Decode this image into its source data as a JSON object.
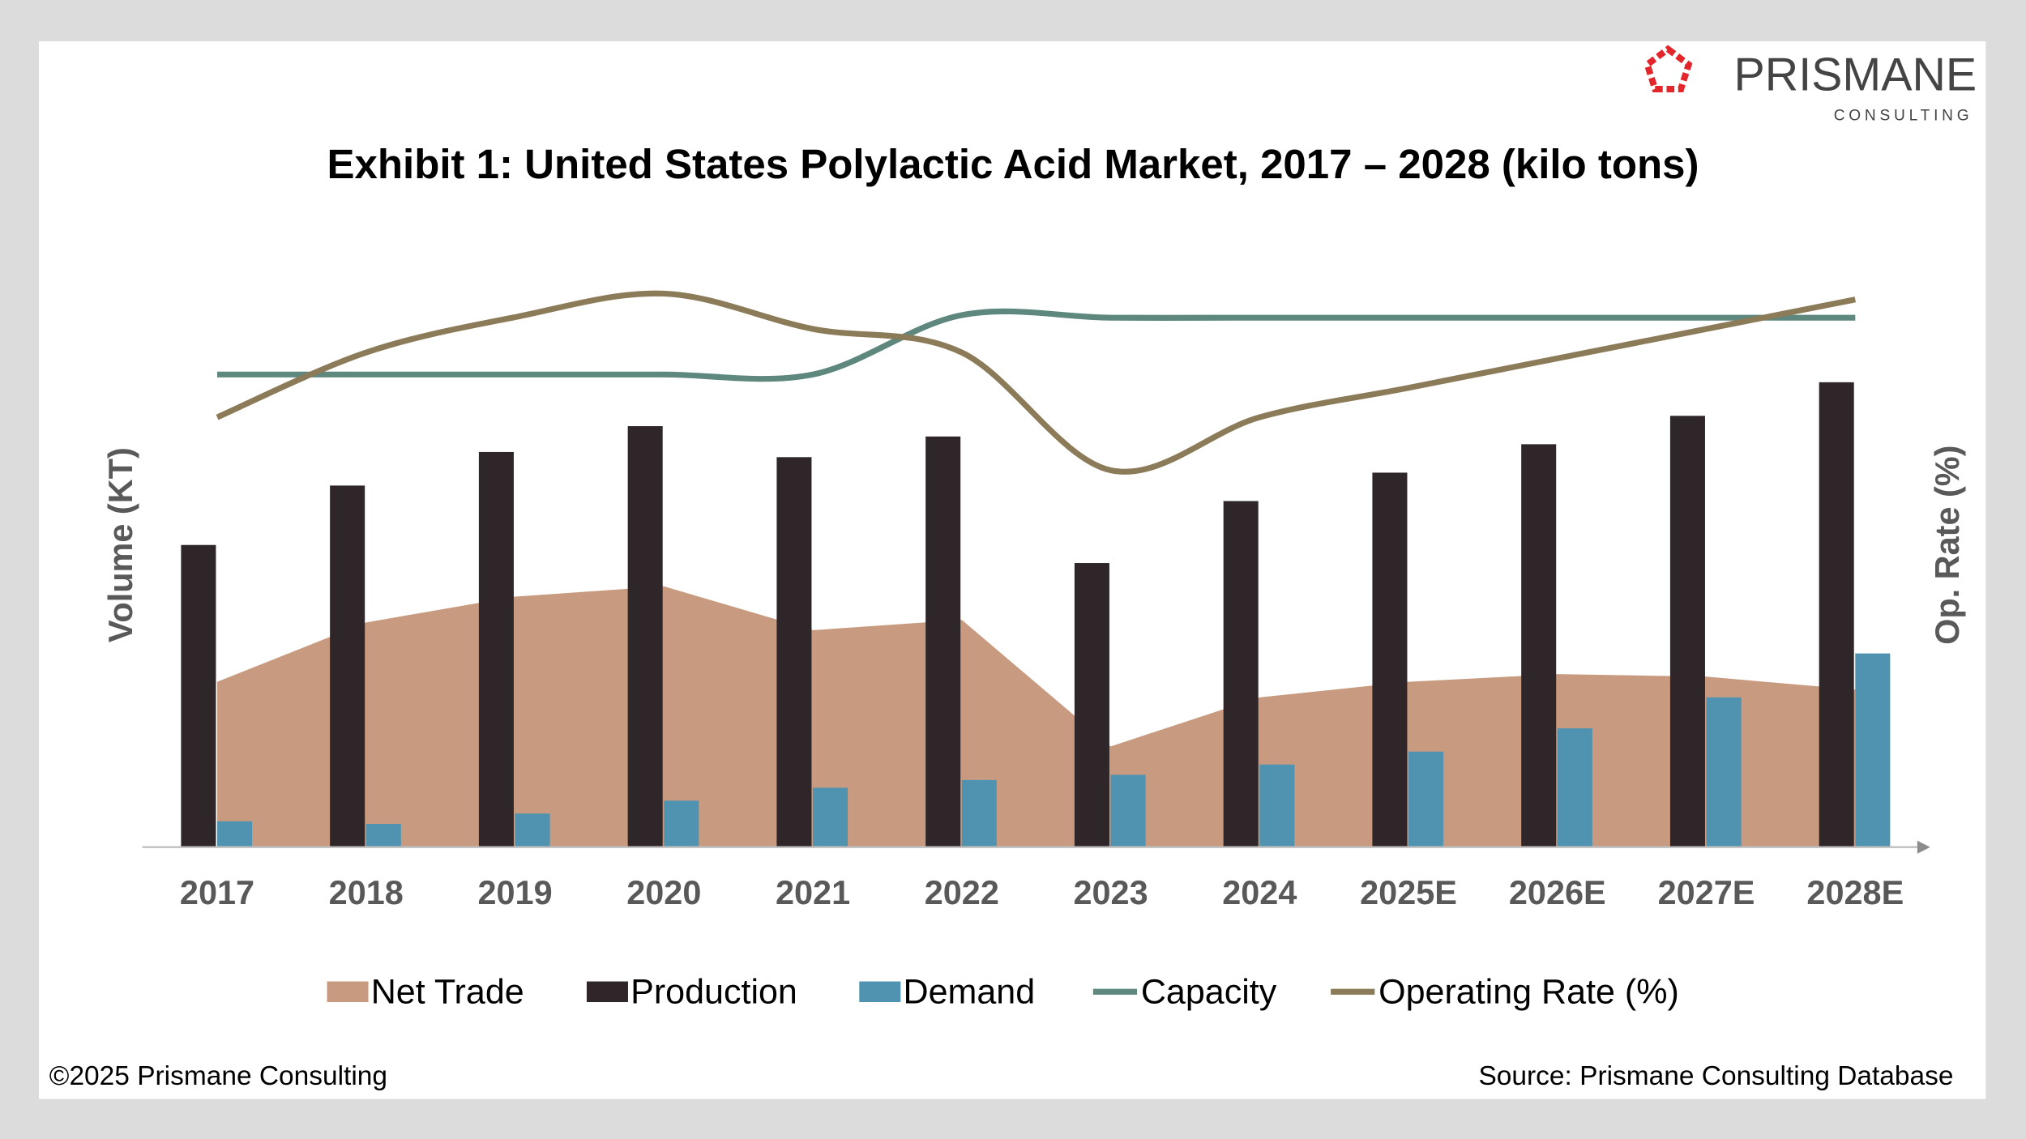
{
  "logo": {
    "name": "PRISMANE",
    "sub": "CONSULTING",
    "color": "#e3262b"
  },
  "footer": {
    "copyright": "©2025 Prismane Consulting",
    "source": "Source: Prismane Consulting Database"
  },
  "chart_data": {
    "type": "bar",
    "title": "Exhibit 1: United States Polylactic Acid Market, 2017 – 2028 (kilo tons)",
    "ylabel": "Volume (KT)",
    "y2label": "Op. Rate (%)",
    "grid": false,
    "legend_position": "bottom",
    "note": "",
    "categories": [
      "2017",
      "2018",
      "2019",
      "2020",
      "2021",
      "2022",
      "2023",
      "2024",
      "2025E",
      "2026E",
      "2027E",
      "2028E"
    ],
    "series": [
      {
        "name": "Net Trade",
        "type": "area",
        "axis": "left",
        "color": "#c89b80",
        "values": [
          64,
          87,
          97,
          101,
          84,
          88,
          39,
          58,
          64,
          67,
          66,
          61
        ]
      },
      {
        "name": "Production",
        "type": "bar",
        "axis": "left",
        "color": "#2e2628",
        "values": [
          117,
          140,
          153,
          163,
          151,
          159,
          110,
          134,
          145,
          156,
          167,
          180
        ]
      },
      {
        "name": "Demand",
        "type": "bar",
        "axis": "left",
        "color": "#4f93b0",
        "values": [
          10,
          9,
          13,
          18,
          23,
          26,
          28,
          32,
          37,
          46,
          58,
          75
        ]
      },
      {
        "name": "Capacity",
        "type": "line",
        "axis": "left",
        "color": "#5e877e",
        "values": [
          183,
          183,
          183,
          183,
          183,
          206,
          205,
          205,
          205,
          205,
          205,
          205
        ]
      },
      {
        "name": "Operating Rate (%)",
        "type": "line",
        "axis": "right",
        "color": "#8b7b58",
        "values": [
          73,
          84,
          90,
          94,
          88,
          84,
          64,
          73,
          78,
          83,
          88,
          93
        ]
      }
    ]
  }
}
